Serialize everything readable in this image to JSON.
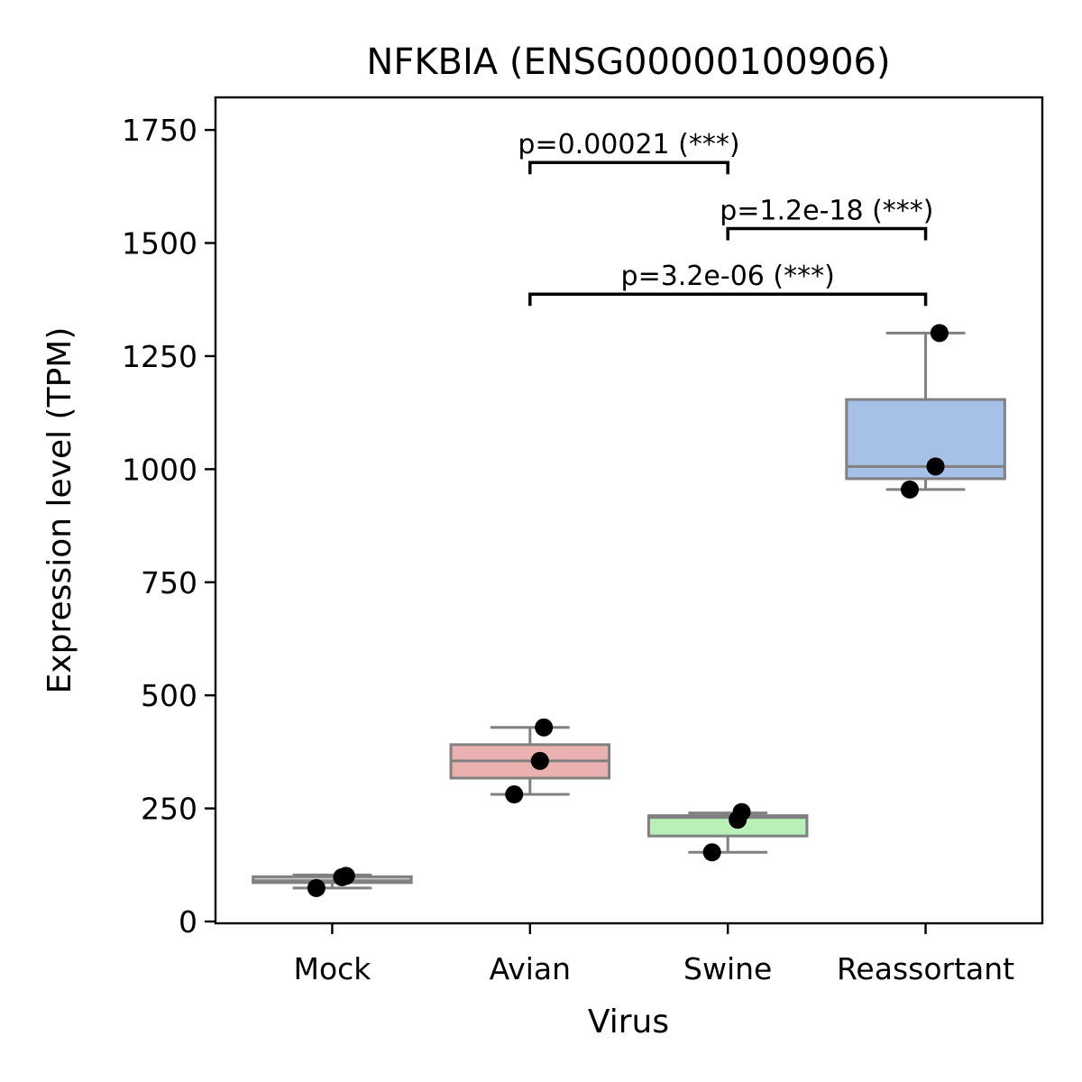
{
  "chart_data": {
    "type": "box",
    "title": "NFKBIA (ENSG00000100906)",
    "xlabel": "Virus",
    "ylabel": "Expression level (TPM)",
    "ylim": [
      -4,
      1822
    ],
    "yticks": [
      0,
      250,
      500,
      750,
      1000,
      1250,
      1500,
      1750
    ],
    "categories": [
      "Mock",
      "Avian",
      "Swine",
      "Reassortant"
    ],
    "grid": false,
    "boxes": [
      {
        "category": "Mock",
        "color": "#cccccc",
        "q1": 86,
        "median": 90,
        "q3": 99,
        "whisker_low": 74,
        "whisker_high": 103,
        "points": [
          74,
          101,
          98
        ]
      },
      {
        "category": "Avian",
        "color": "#ebb0b0",
        "q1": 317,
        "median": 355,
        "q3": 391,
        "whisker_low": 281,
        "whisker_high": 429,
        "points": [
          281,
          429,
          355
        ]
      },
      {
        "category": "Swine",
        "color": "#b8f0b8",
        "q1": 189,
        "median": 230,
        "q3": 234,
        "whisker_low": 153,
        "whisker_high": 240,
        "points": [
          153,
          242,
          225
        ]
      },
      {
        "category": "Reassortant",
        "color": "#a6c0e8",
        "q1": 979,
        "median": 1006,
        "q3": 1154,
        "whisker_low": 955,
        "whisker_high": 1301,
        "points": [
          955,
          1301,
          1006
        ]
      }
    ],
    "annotations": [
      {
        "from": "Avian",
        "to": "Swine",
        "y": 1678,
        "text": "p=0.00021 (***)"
      },
      {
        "from": "Swine",
        "to": "Reassortant",
        "y": 1532,
        "text": "p=1.2e-18 (***)"
      },
      {
        "from": "Avian",
        "to": "Reassortant",
        "y": 1387,
        "text": "p=3.2e-06 (***)"
      }
    ]
  }
}
